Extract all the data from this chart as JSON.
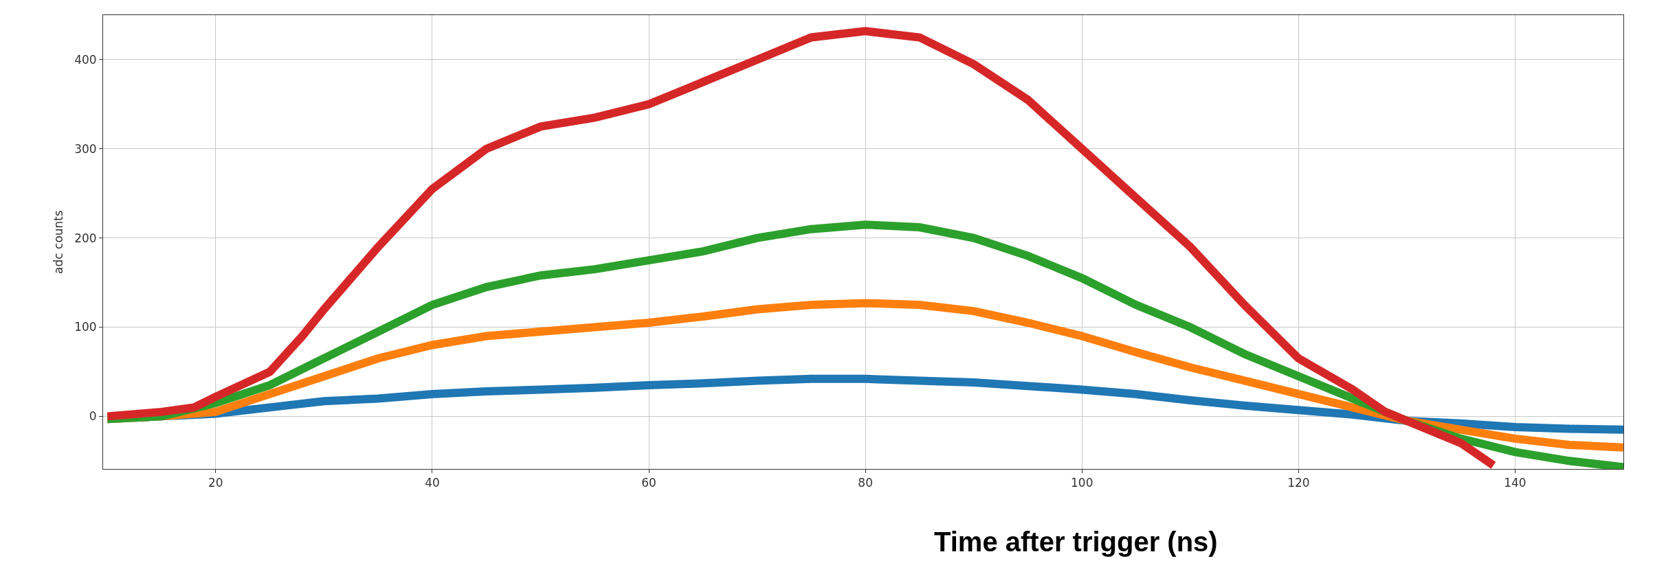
{
  "chart_data": {
    "type": "line",
    "xlabel": "Time after trigger (ns)",
    "ylabel": "adc counts",
    "x": [
      10,
      15,
      20,
      25,
      30,
      35,
      40,
      45,
      50,
      55,
      60,
      65,
      70,
      75,
      80,
      85,
      90,
      95,
      100,
      105,
      110,
      115,
      120,
      125,
      130,
      135,
      140,
      145,
      150
    ],
    "series": [
      {
        "color": "#1f77b4",
        "values": [
          -3,
          0,
          3,
          10,
          17,
          20,
          25,
          28,
          30,
          32,
          35,
          37,
          40,
          42,
          42,
          40,
          38,
          34,
          30,
          25,
          18,
          12,
          7,
          2,
          -5,
          -8,
          -12,
          -14,
          -15
        ]
      },
      {
        "color": "#ff7f0e",
        "values": [
          -3,
          0,
          5,
          25,
          45,
          65,
          80,
          90,
          95,
          100,
          105,
          112,
          120,
          125,
          127,
          125,
          118,
          105,
          90,
          72,
          55,
          40,
          25,
          10,
          -5,
          -15,
          -25,
          -32,
          -35
        ]
      },
      {
        "color": "#2ca02c",
        "values": [
          -3,
          0,
          15,
          35,
          65,
          95,
          125,
          145,
          158,
          165,
          175,
          185,
          200,
          210,
          215,
          212,
          200,
          180,
          155,
          125,
          100,
          70,
          45,
          20,
          -5,
          -25,
          -40,
          -50,
          -57
        ]
      },
      {
        "color": "#d62728",
        "x": [
          10,
          15,
          18,
          20,
          25,
          28,
          30,
          35,
          40,
          45,
          50,
          55,
          60,
          65,
          70,
          75,
          80,
          85,
          90,
          95,
          100,
          105,
          110,
          115,
          120,
          125,
          128,
          130,
          135,
          138
        ],
        "values": [
          0,
          5,
          10,
          22,
          50,
          90,
          120,
          190,
          255,
          300,
          325,
          335,
          350,
          375,
          400,
          425,
          432,
          425,
          395,
          355,
          300,
          245,
          190,
          125,
          65,
          30,
          5,
          -5,
          -30,
          -55
        ]
      }
    ],
    "xlim": [
      9.6,
      150
    ],
    "ylim": [
      -59,
      450
    ],
    "xticks": [
      20,
      40,
      60,
      80,
      100,
      120,
      140
    ],
    "yticks": [
      0,
      100,
      200,
      300,
      400
    ],
    "grid": true,
    "marker": "none",
    "line_style": "solid"
  }
}
